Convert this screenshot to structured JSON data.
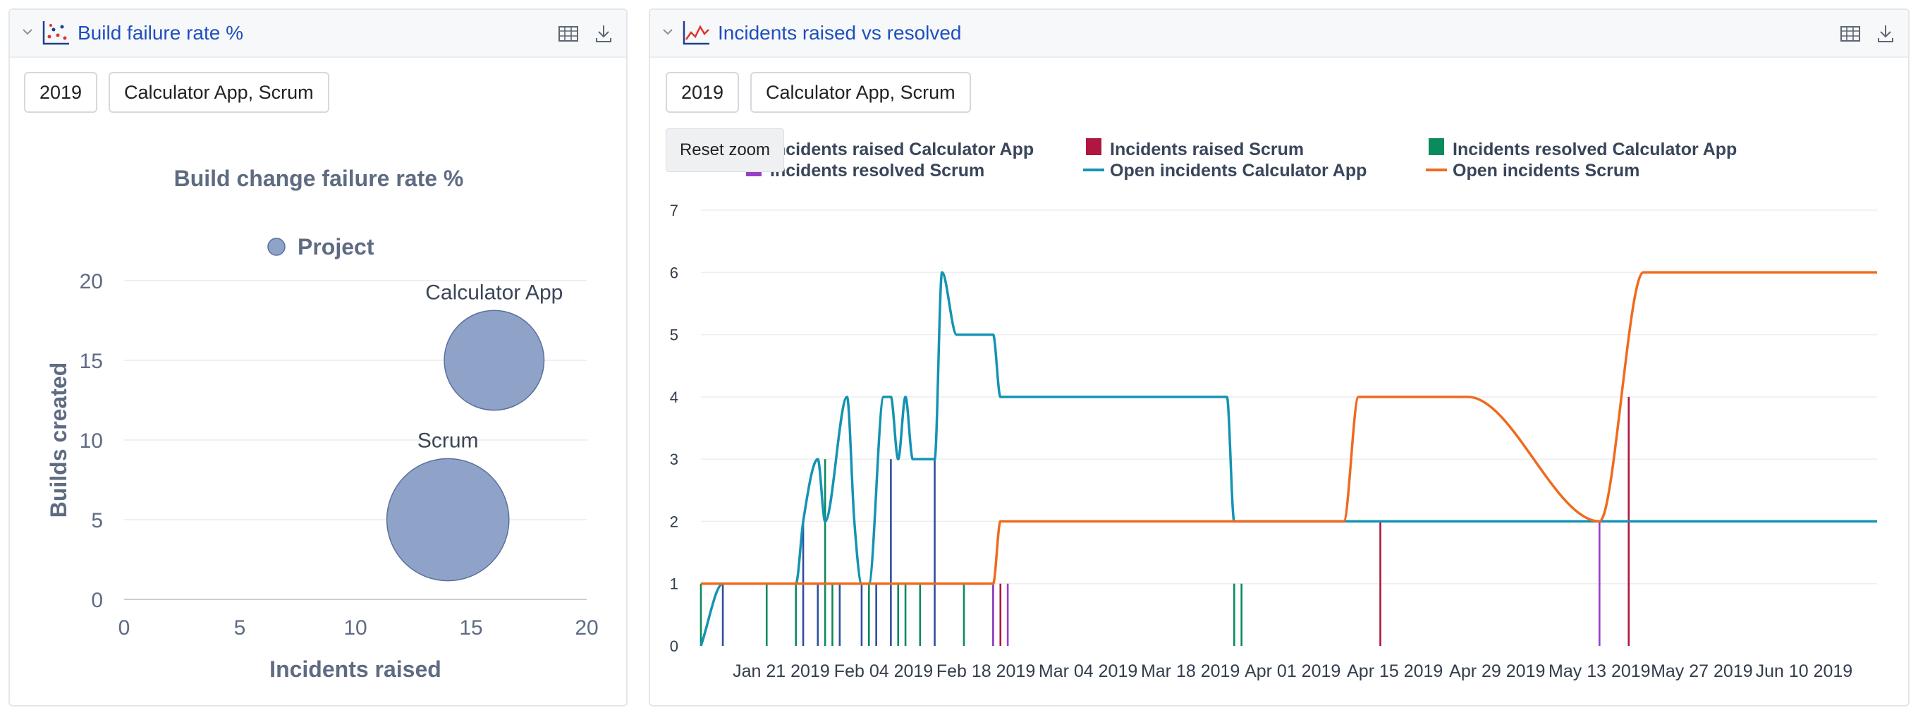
{
  "panels": [
    {
      "title": "Build failure rate %",
      "icon": "scatter-chart-icon",
      "filters": [
        "2019",
        "Calculator App, Scrum"
      ]
    },
    {
      "title": "Incidents raised vs resolved",
      "icon": "line-chart-icon",
      "filters": [
        "2019",
        "Calculator App, Scrum"
      ],
      "reset_zoom_label": "Reset zoom"
    }
  ],
  "chart_data": [
    {
      "type": "scatter",
      "title": "Build change failure rate %",
      "xlabel": "Incidents raised",
      "ylabel": "Builds created",
      "xlim": [
        0,
        20
      ],
      "ylim": [
        0,
        20
      ],
      "x_ticks": [
        0,
        5,
        10,
        15,
        20
      ],
      "y_ticks": [
        0,
        5,
        10,
        15,
        20
      ],
      "grid": true,
      "legend": {
        "placement": "top",
        "entries": [
          "Project"
        ]
      },
      "series": [
        {
          "name": "Project",
          "color": "#8fa3c9",
          "points": [
            {
              "label": "Calculator App",
              "x": 16,
              "y": 15,
              "size": 2
            },
            {
              "label": "Scrum",
              "x": 14,
              "y": 5,
              "size": 3
            }
          ]
        }
      ]
    },
    {
      "type": "line",
      "title": "",
      "xlabel": "",
      "ylabel": "",
      "ylim": [
        0,
        7
      ],
      "y_ticks": [
        0,
        1,
        2,
        3,
        4,
        5,
        6,
        7
      ],
      "x_range": [
        "2019-01-10",
        "2019-06-20"
      ],
      "x_ticks": [
        {
          "date": "2019-01-21",
          "label": "Jan 21 2019"
        },
        {
          "date": "2019-02-04",
          "label": "Feb 04 2019"
        },
        {
          "date": "2019-02-18",
          "label": "Feb 18 2019"
        },
        {
          "date": "2019-03-04",
          "label": "Mar 04 2019"
        },
        {
          "date": "2019-03-18",
          "label": "Mar 18 2019"
        },
        {
          "date": "2019-04-01",
          "label": "Apr 01 2019"
        },
        {
          "date": "2019-04-15",
          "label": "Apr 15 2019"
        },
        {
          "date": "2019-04-29",
          "label": "Apr 29 2019"
        },
        {
          "date": "2019-05-13",
          "label": "May 13 2019"
        },
        {
          "date": "2019-05-27",
          "label": "May 27 2019"
        },
        {
          "date": "2019-06-10",
          "label": "Jun 10 2019"
        }
      ],
      "grid": true,
      "legend": {
        "placement": "top"
      },
      "series": [
        {
          "name": "Incidents raised Calculator App",
          "kind": "bar",
          "color": "#2f4f9e",
          "points": [
            {
              "date": "2019-01-13",
              "value": 1
            },
            {
              "date": "2019-01-24",
              "value": 2
            },
            {
              "date": "2019-01-26",
              "value": 1
            },
            {
              "date": "2019-01-29",
              "value": 1
            },
            {
              "date": "2019-02-01",
              "value": 1
            },
            {
              "date": "2019-02-03",
              "value": 1
            },
            {
              "date": "2019-02-05",
              "value": 3
            },
            {
              "date": "2019-02-11",
              "value": 3
            },
            {
              "date": "2019-02-19",
              "value": 1
            }
          ]
        },
        {
          "name": "Incidents raised Scrum",
          "kind": "bar",
          "color": "#b0163f",
          "points": [
            {
              "date": "2019-02-20",
              "value": 1
            },
            {
              "date": "2019-04-13",
              "value": 2
            },
            {
              "date": "2019-05-17",
              "value": 4
            }
          ]
        },
        {
          "name": "Incidents resolved Calculator App",
          "kind": "bar",
          "color": "#0b8a5c",
          "points": [
            {
              "date": "2019-01-10",
              "value": 1
            },
            {
              "date": "2019-01-19",
              "value": 1
            },
            {
              "date": "2019-01-23",
              "value": 1
            },
            {
              "date": "2019-01-27",
              "value": 3
            },
            {
              "date": "2019-01-28",
              "value": 1
            },
            {
              "date": "2019-02-02",
              "value": 1
            },
            {
              "date": "2019-02-06",
              "value": 1
            },
            {
              "date": "2019-02-07",
              "value": 1
            },
            {
              "date": "2019-02-09",
              "value": 1
            },
            {
              "date": "2019-02-15",
              "value": 1
            },
            {
              "date": "2019-03-24",
              "value": 1
            },
            {
              "date": "2019-03-25",
              "value": 1
            }
          ]
        },
        {
          "name": "Incidents resolved Scrum",
          "kind": "bar",
          "color": "#9a3fc5",
          "points": [
            {
              "date": "2019-02-19",
              "value": 1
            },
            {
              "date": "2019-02-21",
              "value": 1
            },
            {
              "date": "2019-05-13",
              "value": 2
            }
          ]
        },
        {
          "name": "Open incidents Calculator App",
          "kind": "line",
          "color": "#1493b3",
          "points": [
            {
              "date": "2019-01-10",
              "value": 0
            },
            {
              "date": "2019-01-13",
              "value": 1
            },
            {
              "date": "2019-01-23",
              "value": 1
            },
            {
              "date": "2019-01-24",
              "value": 2
            },
            {
              "date": "2019-01-26",
              "value": 3
            },
            {
              "date": "2019-01-27",
              "value": 2
            },
            {
              "date": "2019-01-30",
              "value": 4
            },
            {
              "date": "2019-01-31",
              "value": 2
            },
            {
              "date": "2019-02-01",
              "value": 1
            },
            {
              "date": "2019-02-02",
              "value": 1
            },
            {
              "date": "2019-02-04",
              "value": 4
            },
            {
              "date": "2019-02-05",
              "value": 4
            },
            {
              "date": "2019-02-06",
              "value": 3
            },
            {
              "date": "2019-02-07",
              "value": 4
            },
            {
              "date": "2019-02-08",
              "value": 3
            },
            {
              "date": "2019-02-11",
              "value": 3
            },
            {
              "date": "2019-02-12",
              "value": 6
            },
            {
              "date": "2019-02-14",
              "value": 5
            },
            {
              "date": "2019-02-19",
              "value": 5
            },
            {
              "date": "2019-02-20",
              "value": 4
            },
            {
              "date": "2019-03-23",
              "value": 4
            },
            {
              "date": "2019-03-24",
              "value": 2
            },
            {
              "date": "2019-06-20",
              "value": 2
            }
          ]
        },
        {
          "name": "Open incidents Scrum",
          "kind": "line",
          "color": "#f06a1e",
          "points": [
            {
              "date": "2019-01-10",
              "value": 1
            },
            {
              "date": "2019-02-19",
              "value": 1
            },
            {
              "date": "2019-02-20",
              "value": 2
            },
            {
              "date": "2019-04-08",
              "value": 2
            },
            {
              "date": "2019-04-10",
              "value": 4
            },
            {
              "date": "2019-04-25",
              "value": 4
            },
            {
              "date": "2019-05-13",
              "value": 2
            },
            {
              "date": "2019-05-19",
              "value": 6
            },
            {
              "date": "2019-06-20",
              "value": 6
            }
          ]
        }
      ]
    }
  ]
}
